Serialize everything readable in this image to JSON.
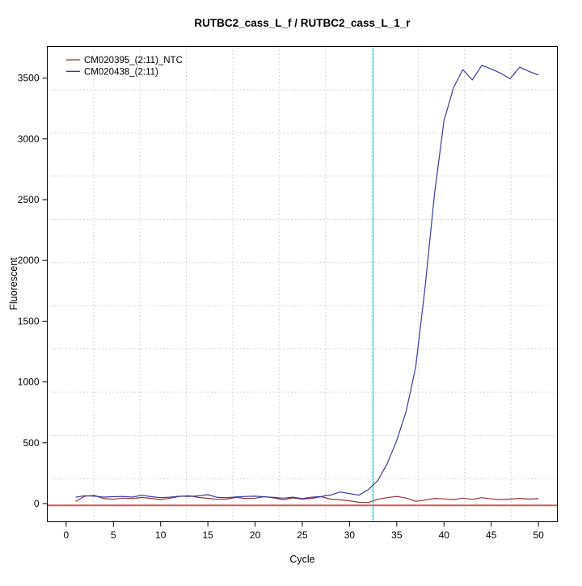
{
  "figure": {
    "background": "#ffffff"
  },
  "chart_data": {
    "type": "line",
    "title": "RUTBC2_cass_L_f / RUTBC2_cass_L_1_r",
    "xlabel": "Cycle",
    "ylabel": "Fluorescent",
    "xlim": [
      -2,
      52
    ],
    "ylim": [
      -150,
      3760
    ],
    "x_ticks": [
      0,
      5,
      10,
      15,
      20,
      25,
      30,
      35,
      40,
      45,
      50
    ],
    "y_ticks": [
      0,
      500,
      1000,
      1500,
      2000,
      2500,
      3000,
      3500
    ],
    "grid": {
      "visible": true,
      "divisions": 11,
      "color": "#c6c6c6",
      "style": "dotted"
    },
    "x": [
      1,
      2,
      3,
      4,
      5,
      6,
      7,
      8,
      9,
      10,
      11,
      12,
      13,
      14,
      15,
      16,
      17,
      18,
      19,
      20,
      21,
      22,
      23,
      24,
      25,
      26,
      27,
      28,
      29,
      30,
      31,
      32,
      33,
      34,
      35,
      36,
      37,
      38,
      39,
      40,
      41,
      42,
      43,
      44,
      45,
      46,
      47,
      48,
      49,
      50
    ],
    "series": [
      {
        "name": "CM020395_(2:11)_NTC",
        "color": "#8e3339",
        "values": [
          18,
          60,
          66,
          40,
          35,
          45,
          40,
          50,
          42,
          32,
          44,
          58,
          64,
          50,
          42,
          35,
          36,
          50,
          42,
          44,
          56,
          46,
          30,
          46,
          36,
          42,
          56,
          36,
          30,
          22,
          10,
          8,
          35,
          48,
          58,
          45,
          18,
          28,
          42,
          38,
          32,
          44,
          34,
          48,
          38,
          32,
          36,
          42,
          36,
          40
        ]
      },
      {
        "name": "CM020438_(2:11)",
        "color": "#3b3b9c",
        "values": [
          52,
          64,
          60,
          53,
          56,
          58,
          53,
          68,
          56,
          48,
          52,
          60,
          58,
          63,
          73,
          50,
          48,
          55,
          58,
          60,
          55,
          50,
          44,
          52,
          40,
          52,
          58,
          70,
          95,
          82,
          68,
          115,
          190,
          330,
          520,
          760,
          1120,
          1780,
          2550,
          3150,
          3420,
          3570,
          3485,
          3605,
          3575,
          3540,
          3495,
          3590,
          3555,
          3525
        ]
      }
    ],
    "threshold_line": {
      "orientation": "horizontal",
      "value": -15,
      "color": "#cd5c5c"
    },
    "ct_line": {
      "orientation": "vertical",
      "cycle": 32.5,
      "color": "#4ddee8"
    },
    "legend": {
      "position": "top-left",
      "entries": [
        "CM020395_(2:11)_NTC",
        "CM020438_(2:11)"
      ]
    }
  }
}
